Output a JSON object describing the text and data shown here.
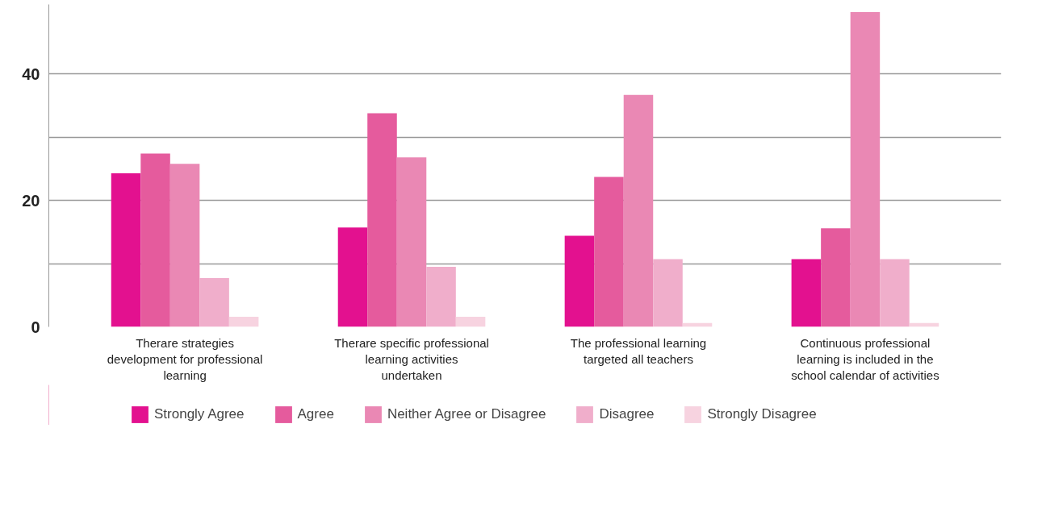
{
  "chart_data": {
    "type": "bar",
    "categories": [
      "Therare strategies development for professional learning",
      "Therare specific professional learning activities undertaken",
      "The professional learning targeted all teachers",
      "Continuous professional learning is included in the school calendar of activities"
    ],
    "series": [
      {
        "name": "Strongly Agree",
        "color": "#e3118f",
        "values": [
          24.3,
          15.7,
          14.4,
          10.7
        ]
      },
      {
        "name": "Agree",
        "color": "#e55b9d",
        "values": [
          27.4,
          33.8,
          23.7,
          15.6
        ]
      },
      {
        "name": "Neither Agree or Disagree",
        "color": "#ea88b4",
        "values": [
          25.8,
          26.8,
          36.7,
          49.8
        ]
      },
      {
        "name": "Disagree",
        "color": "#f0aecb",
        "values": [
          7.7,
          9.5,
          10.7,
          10.7
        ]
      },
      {
        "name": "Strongly Disagree",
        "color": "#f7d3e0",
        "values": [
          1.6,
          1.6,
          0.6,
          0.6
        ]
      }
    ],
    "ylim": [
      0,
      51
    ],
    "yticks": [
      0,
      {
        "value": 10,
        "label": null
      },
      20,
      {
        "value": 30,
        "label": null
      },
      40
    ],
    "grid": "y",
    "legend": "bottom"
  }
}
